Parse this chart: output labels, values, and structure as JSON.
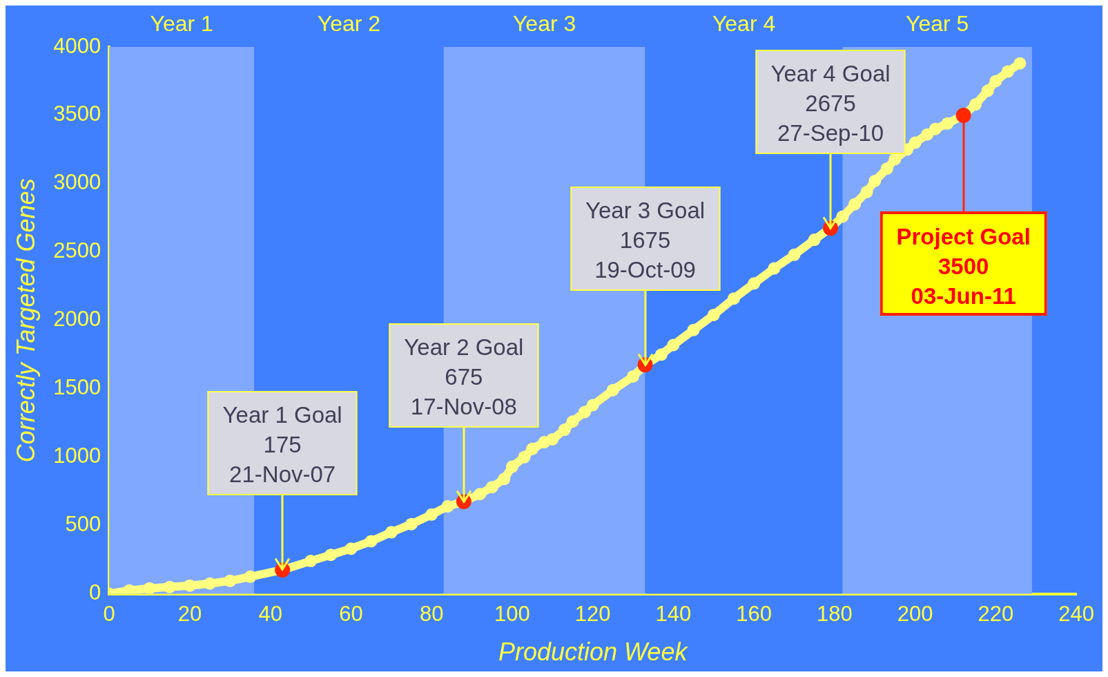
{
  "chart_data": {
    "type": "line",
    "xlabel": "Production Week",
    "ylabel": "Correctly Targeted Genes",
    "xlim": [
      0,
      240
    ],
    "xticks": [
      0,
      20,
      40,
      60,
      80,
      100,
      120,
      140,
      160,
      180,
      200,
      220,
      240
    ],
    "ylim": [
      0,
      4000
    ],
    "yticks": [
      0,
      500,
      1000,
      1500,
      2000,
      2500,
      3000,
      3500,
      4000
    ],
    "grid": false,
    "legend": false,
    "marker": "circle",
    "series": [
      {
        "type": "line",
        "color": "#ffff80",
        "x": [
          0,
          5,
          10,
          15,
          20,
          25,
          30,
          35,
          43,
          50,
          55,
          60,
          65,
          70,
          75,
          80,
          84,
          88,
          92,
          95,
          98,
          100,
          103,
          105,
          108,
          110,
          113,
          115,
          118,
          120,
          125,
          130,
          133,
          137,
          140,
          145,
          150,
          155,
          160,
          165,
          170,
          175,
          179,
          182,
          185,
          188,
          190,
          193,
          195,
          198,
          200,
          203,
          205,
          208,
          212,
          215,
          218,
          220,
          223,
          226
        ],
        "values": [
          0,
          25,
          40,
          50,
          60,
          75,
          95,
          125,
          175,
          240,
          285,
          330,
          385,
          450,
          510,
          580,
          640,
          675,
          730,
          780,
          840,
          930,
          1000,
          1060,
          1110,
          1130,
          1200,
          1260,
          1330,
          1380,
          1490,
          1590,
          1675,
          1750,
          1820,
          1930,
          2040,
          2160,
          2270,
          2380,
          2480,
          2590,
          2675,
          2760,
          2850,
          2940,
          3020,
          3110,
          3180,
          3250,
          3300,
          3360,
          3400,
          3440,
          3500,
          3580,
          3680,
          3750,
          3820,
          3880
        ]
      },
      {
        "type": "scatter",
        "color": "#ff2800",
        "x": [
          43,
          88,
          133,
          179,
          212
        ],
        "values": [
          175,
          675,
          1675,
          2675,
          3500
        ]
      }
    ],
    "bands": [
      {
        "axis": "x",
        "from": 0,
        "to": 36,
        "label": "Year 1",
        "color": "#80a8ff"
      },
      {
        "axis": "x",
        "from": 36,
        "to": 83,
        "label": "Year 2",
        "color": "#4080ff"
      },
      {
        "axis": "x",
        "from": 83,
        "to": 133,
        "label": "Year 3",
        "color": "#80a8ff"
      },
      {
        "axis": "x",
        "from": 133,
        "to": 182,
        "label": "Year 4",
        "color": "#4080ff"
      },
      {
        "axis": "x",
        "from": 182,
        "to": 229,
        "label": "Year 5",
        "color": "#80a8ff"
      }
    ],
    "annotations": [
      {
        "text": "Year 1 Goal\n175\n21-Nov-07",
        "x": 43,
        "y": 175
      },
      {
        "text": "Year 2 Goal\n675\n17-Nov-08",
        "x": 88,
        "y": 675
      },
      {
        "text": "Year 3 Goal\n1675\n19-Oct-09",
        "x": 133,
        "y": 1675
      },
      {
        "text": "Year 4 Goal\n2675\n27-Sep-10",
        "x": 179,
        "y": 2675
      },
      {
        "text": "Project Goal\n3500\n03-Jun-11",
        "x": 212,
        "y": 3500
      }
    ]
  }
}
